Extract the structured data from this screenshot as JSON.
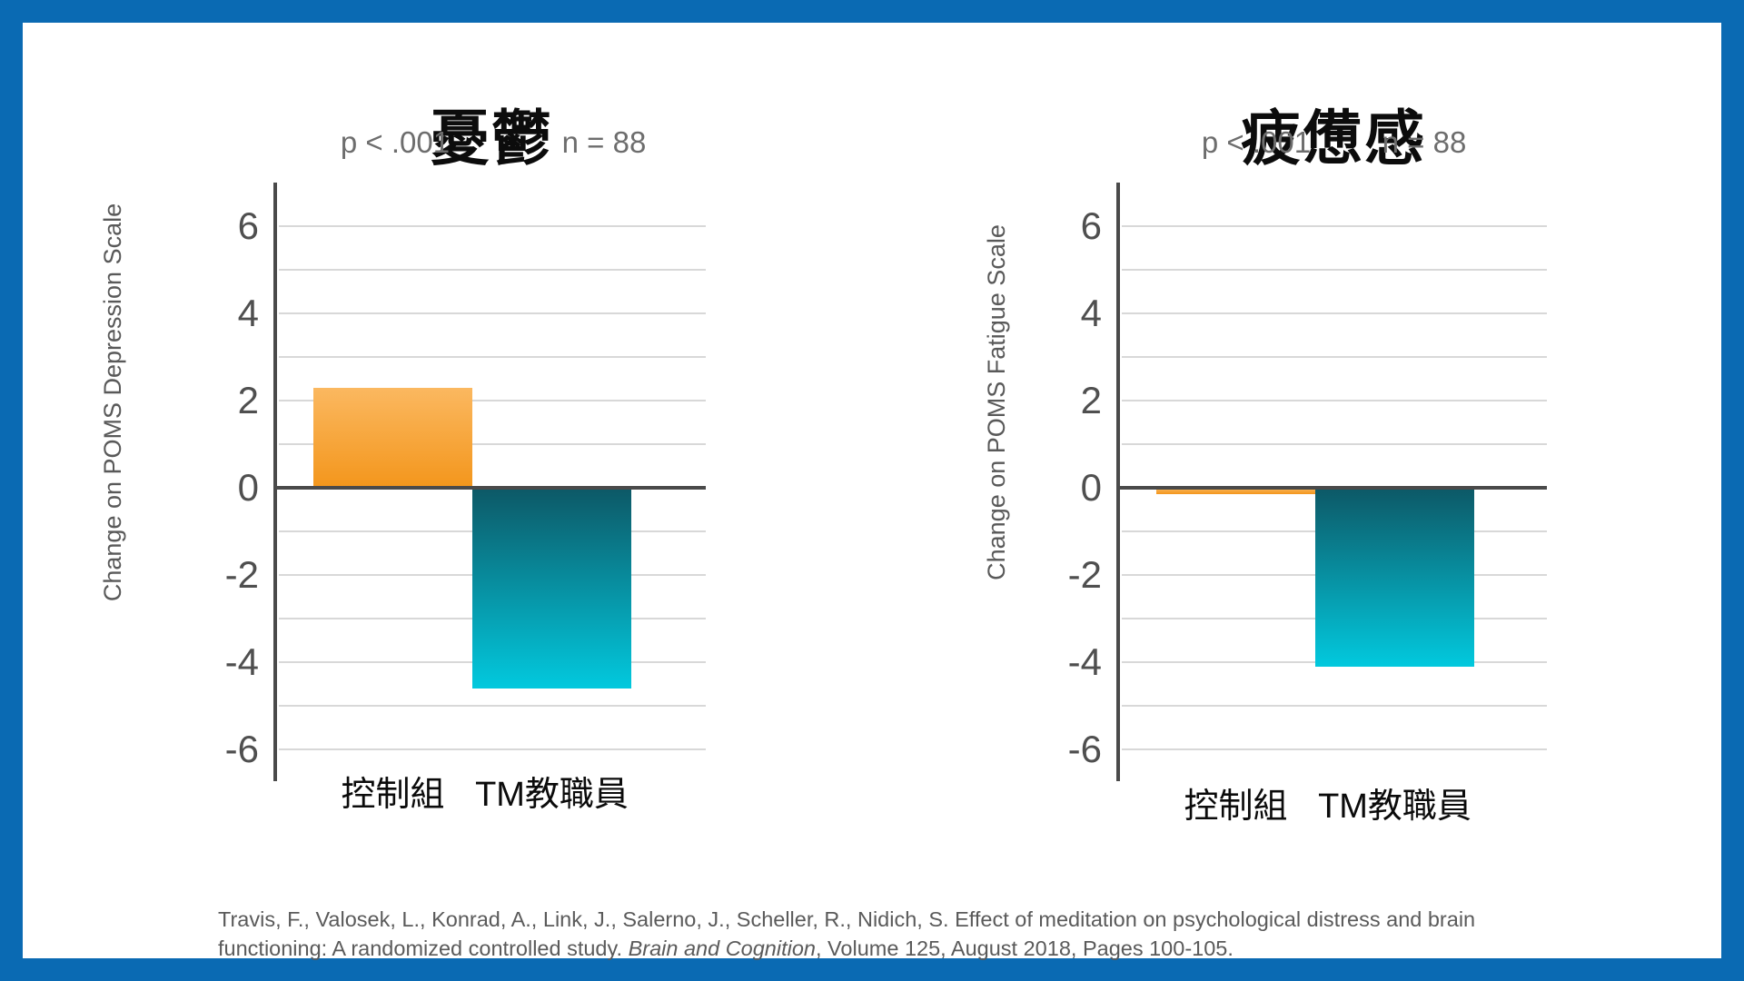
{
  "chart_data": [
    {
      "type": "bar",
      "title": "憂鬱",
      "p_label": "p < .001",
      "n_label": "n = 88",
      "ylabel": "Change on POMS Depression Scale",
      "xlabel": "",
      "categories": [
        "控制組",
        "TM教職員"
      ],
      "values": [
        2.3,
        -4.6
      ],
      "yticks": [
        6,
        4,
        2,
        0,
        -2,
        -4,
        -6
      ],
      "ylim": [
        -6.9,
        7
      ],
      "grid": true,
      "gridline_step": 1,
      "legend": "none",
      "bar_gradients": [
        [
          "#fbb860",
          "#f3961c"
        ],
        [
          "#0d5866",
          "#02c9de"
        ]
      ]
    },
    {
      "type": "bar",
      "title": "疲憊感",
      "p_label": "p < .001",
      "n_label": "n = 88",
      "ylabel": "Change on POMS Fatigue Scale",
      "xlabel": "",
      "categories": [
        "控制組",
        "TM教職員"
      ],
      "values": [
        -0.15,
        -4.1
      ],
      "yticks": [
        6,
        4,
        2,
        0,
        -2,
        -4,
        -6
      ],
      "ylim": [
        -6.9,
        7
      ],
      "grid": true,
      "gridline_step": 1,
      "legend": "none",
      "bar_gradients": [
        [
          "#fbb860",
          "#f3961c"
        ],
        [
          "#0d5866",
          "#02c9de"
        ]
      ]
    }
  ],
  "colors": {
    "frame_blue": "#0a6ab3",
    "axis_gray": "#4a4a4a",
    "gridline_gray": "#d8d8d8",
    "control_bar_top": "#fbb860",
    "control_bar_bottom": "#f3961c",
    "tm_bar_top": "#0d5866",
    "tm_bar_bottom": "#02c9de",
    "text_gray": "#595959"
  },
  "citation": {
    "line1": "Travis, F., Valosek, L., Konrad, A., Link, J., Salerno, J., Scheller, R., Nidich, S. Effect of meditation on psychological distress and brain",
    "line2_pre": "functioning: A randomized controlled study. ",
    "line2_italic": "Brain and Cognition",
    "line2_post": ", Volume 125, August 2018, Pages 100-105."
  }
}
